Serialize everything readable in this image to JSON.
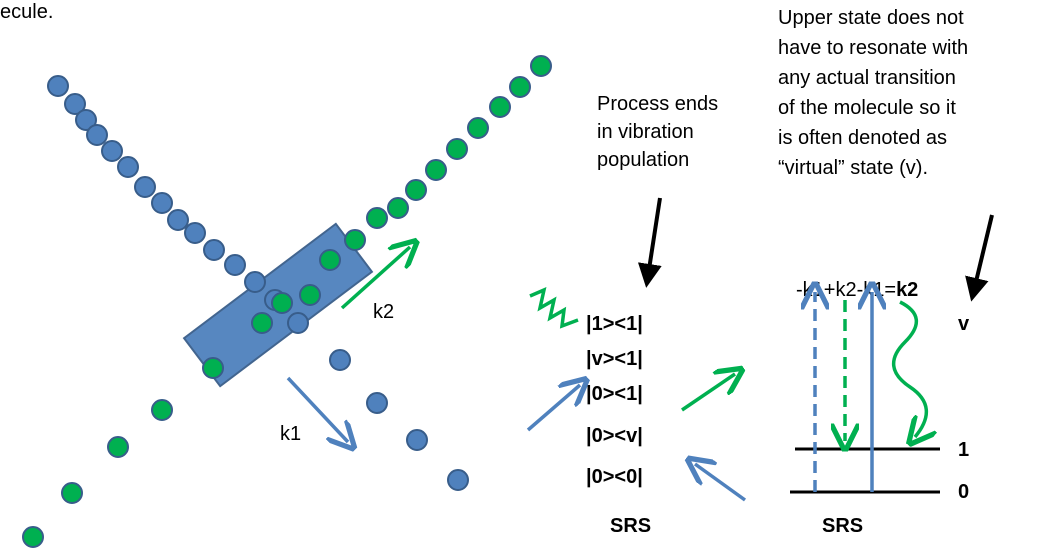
{
  "top_fragment": "ecule.",
  "virtual_note": [
    "Upper state does not",
    "have to resonate with",
    "any actual transition",
    "of the molecule so it",
    "is often denoted as",
    "“virtual” state (v)."
  ],
  "process_note": [
    "Process ends",
    "in vibration",
    "population"
  ],
  "beam_labels": {
    "k2": "k2",
    "k1": "k1"
  },
  "density_matrix": [
    "|1><1|",
    "|v><1|",
    "|0><1|",
    "|0><v|",
    "|0><0|"
  ],
  "srs_left": "SRS",
  "phase_matching": {
    "expression": "-k1+k2-k1=",
    "result": "k2"
  },
  "levels": {
    "v": "v",
    "one": "1",
    "zero": "0"
  },
  "srs_right": "SRS"
}
